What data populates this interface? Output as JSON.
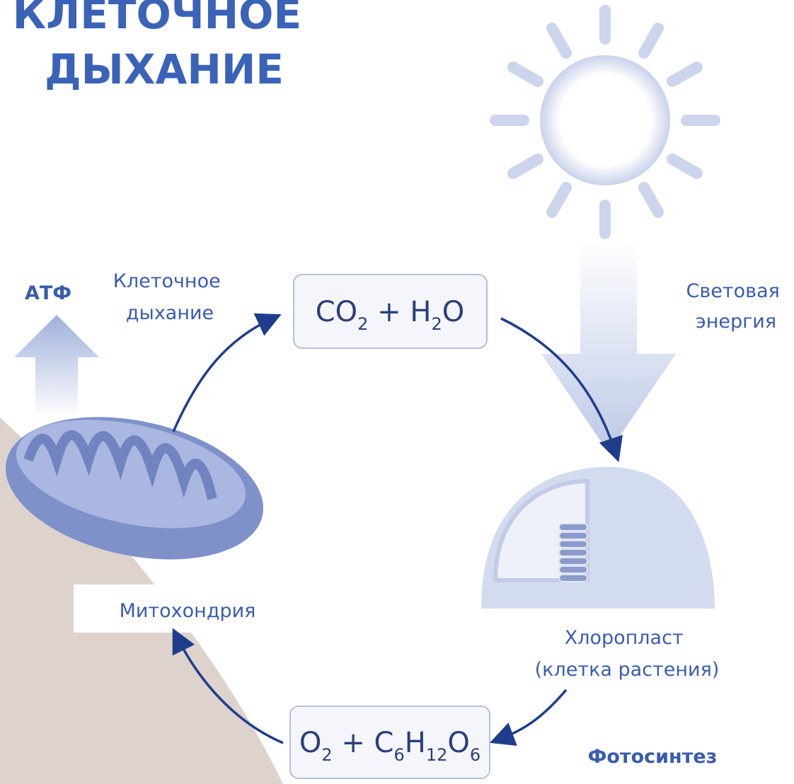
{
  "title": {
    "lines": [
      "КЛЕТОЧНОЕ",
      "ДЫХАНИЕ"
    ]
  },
  "labels": {
    "atp": "АТФ",
    "respiration": {
      "lines": [
        "Клеточное",
        "дыхание"
      ]
    },
    "light": {
      "lines": [
        "Световая",
        "энергия"
      ]
    },
    "mitochondrion": "Митохондрия",
    "chloroplast": {
      "lines": [
        "Хлоропласт",
        "(клетка растения)"
      ]
    },
    "photosynthesis": "Фотосинтез"
  },
  "formulas": {
    "top": {
      "parts": [
        "CO",
        "2",
        " + H",
        "2",
        "O"
      ]
    },
    "bottom": {
      "parts": [
        "O",
        "2",
        " + C",
        "6",
        "H",
        "12",
        "O",
        "6"
      ]
    }
  }
}
